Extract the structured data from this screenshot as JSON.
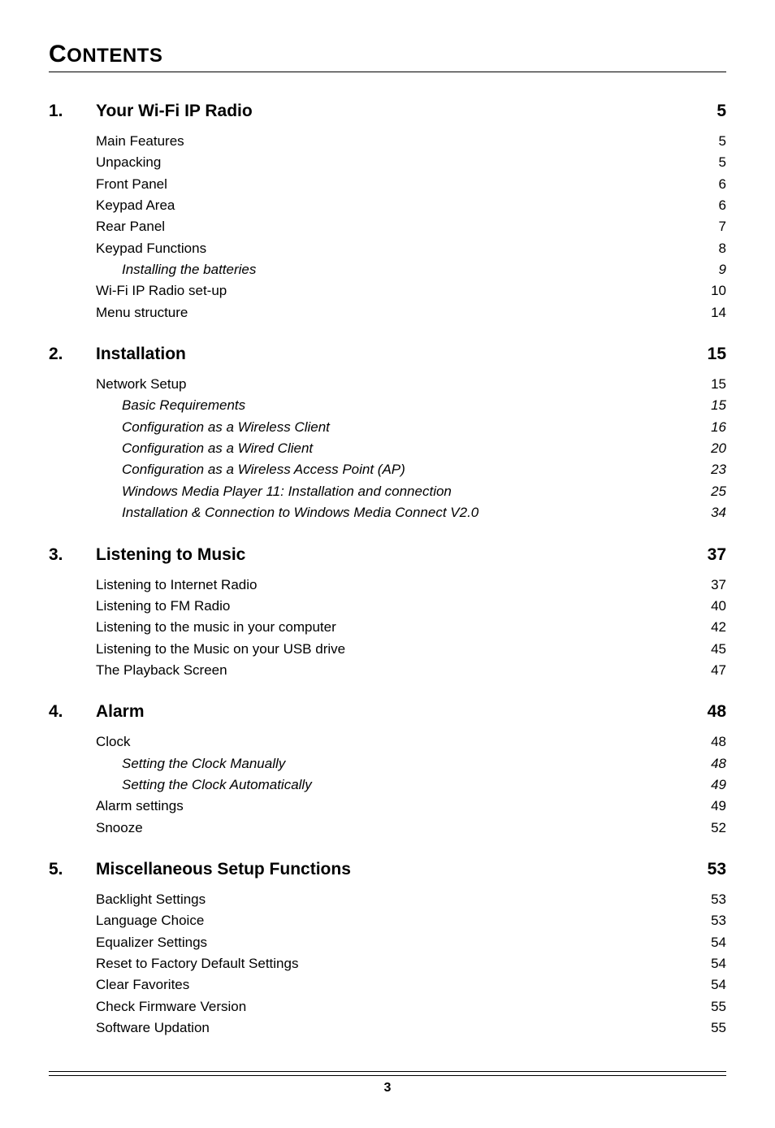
{
  "title_first": "C",
  "title_rest": "ONTENTS",
  "footer_page": "3",
  "sections": [
    {
      "num": "1.",
      "title": "Your Wi-Fi IP Radio",
      "page": "5",
      "items": [
        {
          "label": "Main Features",
          "page": "5",
          "level": 1
        },
        {
          "label": "Unpacking",
          "page": "5",
          "level": 1
        },
        {
          "label": "Front Panel",
          "page": "6",
          "level": 1
        },
        {
          "label": "Keypad Area",
          "page": "6",
          "level": 1
        },
        {
          "label": "Rear Panel",
          "page": "7",
          "level": 1
        },
        {
          "label": "Keypad Functions",
          "page": "8",
          "level": 1
        },
        {
          "label": "Installing the batteries",
          "page": "9",
          "level": 2
        },
        {
          "label": "Wi-Fi IP Radio set-up",
          "page": "10",
          "level": 1
        },
        {
          "label": "Menu structure",
          "page": "14",
          "level": 1
        }
      ]
    },
    {
      "num": "2.",
      "title": "Installation",
      "page": "15",
      "items": [
        {
          "label": "Network Setup",
          "page": "15",
          "level": 1
        },
        {
          "label": "Basic Requirements",
          "page": "15",
          "level": 2
        },
        {
          "label": "Configuration as a Wireless Client",
          "page": "16",
          "level": 2
        },
        {
          "label": "Configuration as a Wired Client",
          "page": "20",
          "level": 2
        },
        {
          "label": "Configuration as a Wireless Access Point (AP)",
          "page": "23",
          "level": 2
        },
        {
          "label": "Windows Media Player 11: Installation and connection",
          "page": "25",
          "level": 2
        },
        {
          "label": "Installation & Connection to Windows Media Connect V2.0",
          "page": "34",
          "level": 2
        }
      ]
    },
    {
      "num": "3.",
      "title": "Listening to Music",
      "page": "37",
      "items": [
        {
          "label": "Listening to Internet Radio",
          "page": "37",
          "level": 1
        },
        {
          "label": "Listening to FM Radio",
          "page": "40",
          "level": 1
        },
        {
          "label": "Listening to the music in your computer",
          "page": "42",
          "level": 1
        },
        {
          "label": "Listening to the Music on your USB drive",
          "page": "45",
          "level": 1
        },
        {
          "label": "The Playback Screen",
          "page": "47",
          "level": 1
        }
      ]
    },
    {
      "num": "4.",
      "title": "Alarm",
      "page": "48",
      "items": [
        {
          "label": "Clock",
          "page": "48",
          "level": 1
        },
        {
          "label": "Setting the Clock Manually",
          "page": "48",
          "level": 2
        },
        {
          "label": "Setting the Clock Automatically",
          "page": "49",
          "level": 2
        },
        {
          "label": "Alarm settings",
          "page": "49",
          "level": 1
        },
        {
          "label": "Snooze",
          "page": "52",
          "level": 1
        }
      ]
    },
    {
      "num": "5.",
      "title": "Miscellaneous Setup Functions",
      "page": "53",
      "items": [
        {
          "label": "Backlight Settings",
          "page": "53",
          "level": 1
        },
        {
          "label": "Language Choice",
          "page": "53",
          "level": 1
        },
        {
          "label": "Equalizer Settings",
          "page": "54",
          "level": 1
        },
        {
          "label": "Reset to Factory Default Settings",
          "page": "54",
          "level": 1
        },
        {
          "label": "Clear Favorites",
          "page": "54",
          "level": 1
        },
        {
          "label": "Check Firmware Version",
          "page": "55",
          "level": 1
        },
        {
          "label": "Software Updation",
          "page": "55",
          "level": 1
        }
      ]
    }
  ]
}
